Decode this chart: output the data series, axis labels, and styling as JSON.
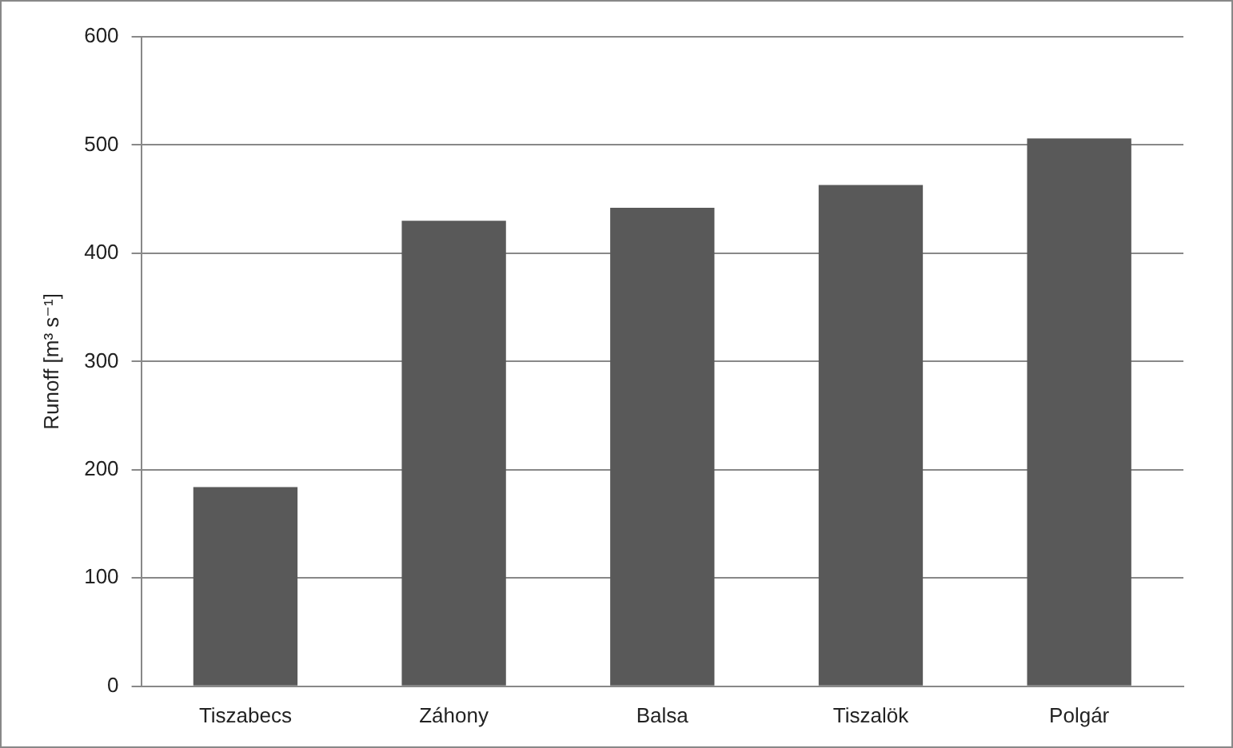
{
  "chart_data": {
    "type": "bar",
    "ylabel": "Runoff [m³ s⁻¹]",
    "categories": [
      "Tiszabecs",
      "Záhony",
      "Balsa",
      "Tiszalök",
      "Polgár"
    ],
    "values": [
      184,
      430,
      442,
      463,
      506
    ],
    "color": "#595959",
    "ylim": [
      0,
      600
    ],
    "yticks": [
      0,
      100,
      200,
      300,
      400,
      500,
      600
    ],
    "grid": "y",
    "legend": false
  }
}
